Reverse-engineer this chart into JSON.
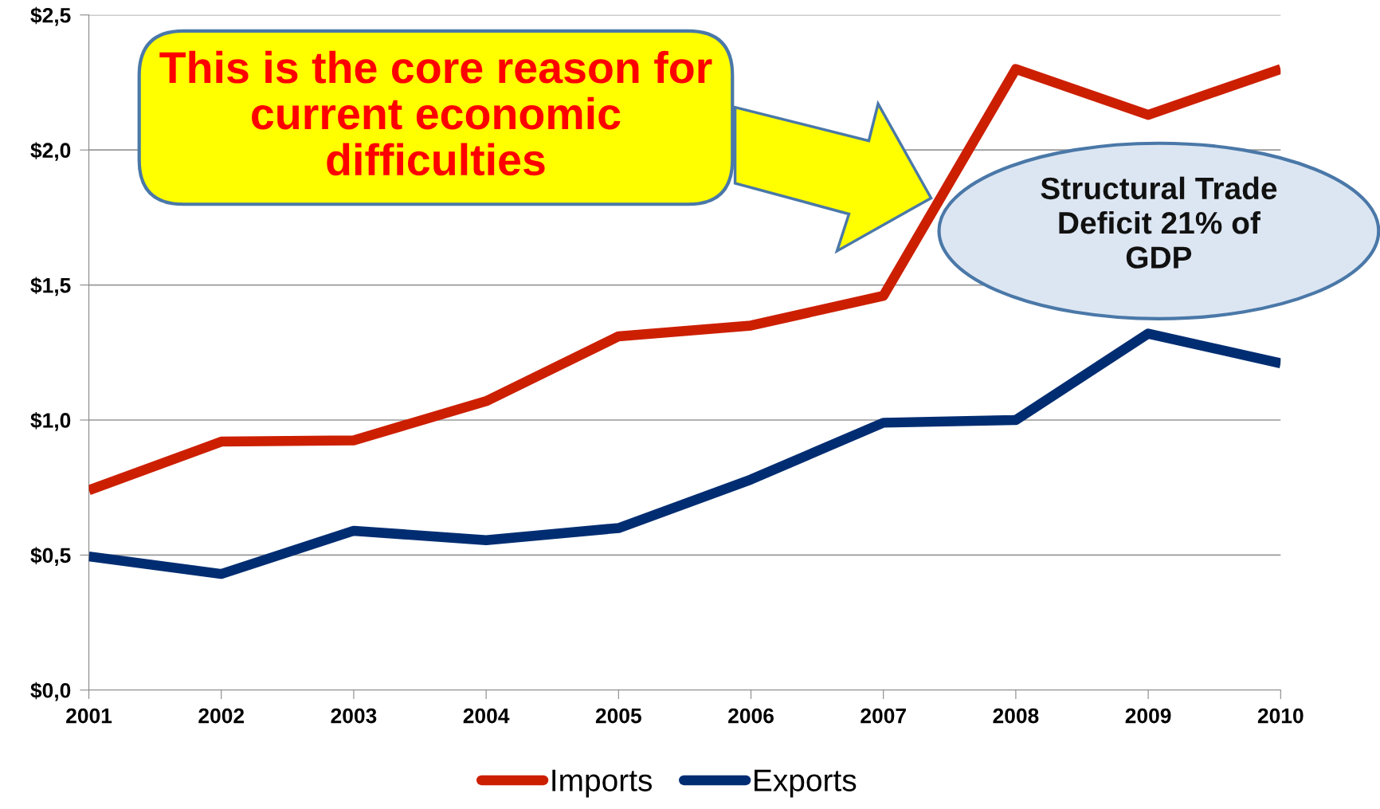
{
  "chart_data": {
    "type": "line",
    "x": [
      2001,
      2002,
      2003,
      2004,
      2005,
      2006,
      2007,
      2008,
      2009,
      2010
    ],
    "series": [
      {
        "name": "Imports",
        "color": "#cc1f00",
        "values": [
          0.74,
          0.92,
          0.925,
          1.07,
          1.31,
          1.35,
          1.46,
          2.3,
          2.13,
          2.3
        ]
      },
      {
        "name": "Exports",
        "color": "#002d72",
        "values": [
          0.495,
          0.43,
          0.59,
          0.555,
          0.6,
          0.78,
          0.99,
          1.0,
          1.32,
          1.21
        ]
      }
    ],
    "xlim": [
      2001,
      2010
    ],
    "xticks": [
      2001,
      2002,
      2003,
      2004,
      2005,
      2006,
      2007,
      2008,
      2009,
      2010
    ],
    "ylim": [
      0,
      2.5
    ],
    "yticks": [
      {
        "value": 0,
        "label": "$0,0"
      },
      {
        "value": 0.5,
        "label": "$0,5"
      },
      {
        "value": 1.0,
        "label": "$1,0"
      },
      {
        "value": 1.5,
        "label": "$1,5"
      },
      {
        "value": 2.0,
        "label": "$2,0"
      },
      {
        "value": 2.5,
        "label": "$2,5"
      }
    ],
    "grid": "y",
    "legend": "bottom",
    "marker": "none",
    "line_style": "solid",
    "annotations": [
      "This is the core reason for\ncurrent economic\ndifficulties",
      "Structural Trade\nDeficit 21% of\nGDP"
    ]
  }
}
